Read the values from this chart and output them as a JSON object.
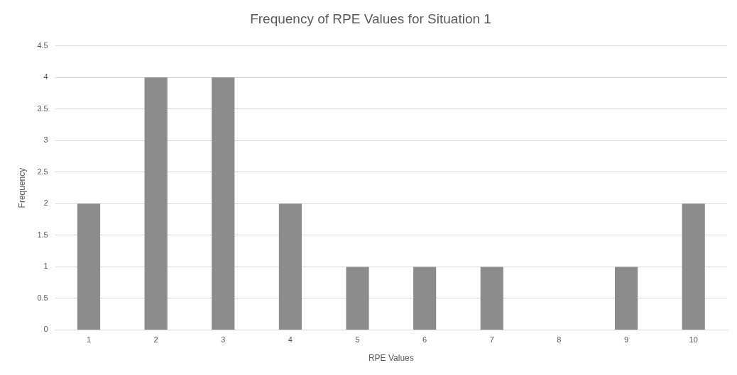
{
  "chart_data": {
    "type": "bar",
    "title": "Frequency of RPE Values for Situation 1",
    "xlabel": "RPE Values",
    "ylabel": "Frequency",
    "categories": [
      "1",
      "2",
      "3",
      "4",
      "5",
      "6",
      "7",
      "8",
      "9",
      "10"
    ],
    "values": [
      2,
      4,
      4,
      2,
      1,
      1,
      1,
      0,
      1,
      2
    ],
    "color": "#8c8c8c",
    "ylim": [
      0,
      4.5
    ],
    "yticks": [
      0,
      0.5,
      1,
      1.5,
      2,
      2.5,
      3,
      3.5,
      4,
      4.5
    ],
    "grid": "y",
    "legend": false
  }
}
